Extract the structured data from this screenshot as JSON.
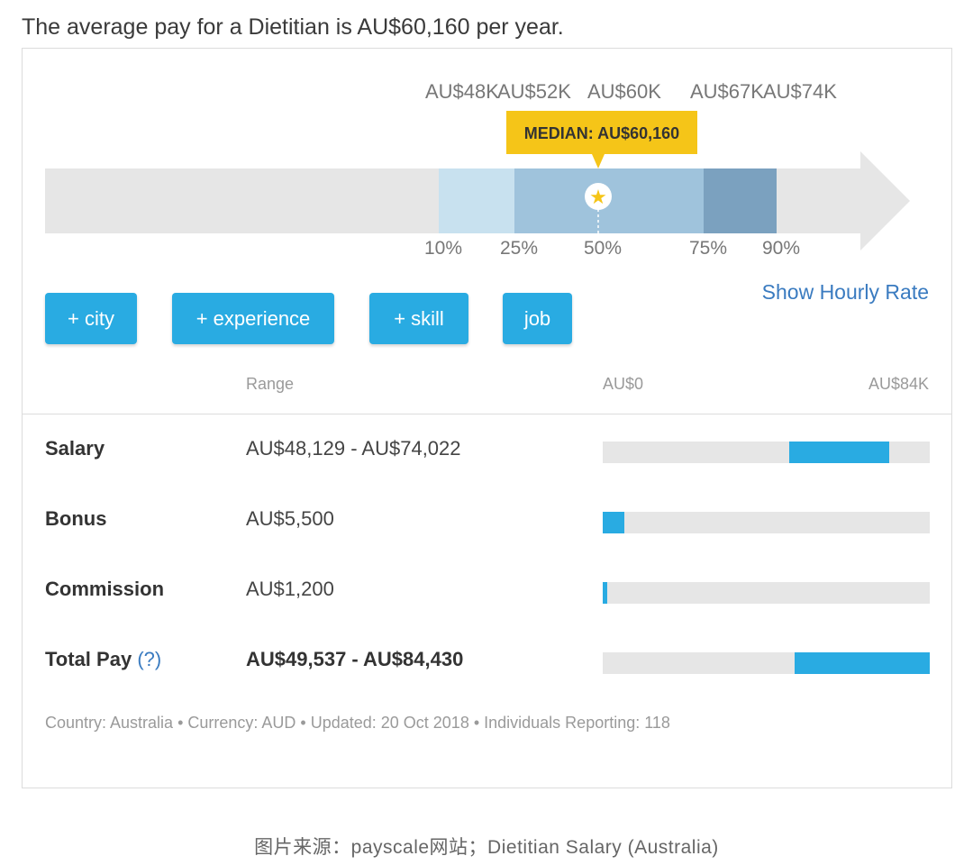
{
  "headline": "The average pay for a Dietitian is AU$60,160 per year.",
  "chart_data": {
    "type": "bar",
    "title": "",
    "percentile_labels": [
      "10%",
      "25%",
      "50%",
      "75%",
      "90%"
    ],
    "percentile_values": [
      "AU$48K",
      "AU$52K",
      "AU$60K",
      "AU$67K",
      "AU$74K"
    ],
    "values": [
      48129,
      52000,
      60160,
      67000,
      74022
    ],
    "median_label": "MEDIAN: AU$60,160",
    "median_value": 60160,
    "colors": {
      "band_outer": "#c8e1ef",
      "band_inner": "#9fc3dc",
      "band_upper": "#7ba1bf",
      "arrow": "#e6e6e6",
      "median_badge": "#f5c518"
    }
  },
  "filters": {
    "city": "+ city",
    "experience": "+ experience",
    "skill": "+ skill",
    "job": "job"
  },
  "show_hourly": "Show Hourly Rate",
  "table": {
    "range_header": "Range",
    "scale_min": "AU$0",
    "scale_max": "AU$84K",
    "scale_max_value": 84430,
    "rows": [
      {
        "label": "Salary",
        "range": "AU$48,129 - AU$74,022",
        "low": 48129,
        "high": 74022
      },
      {
        "label": "Bonus",
        "range": "AU$5,500",
        "low": 0,
        "high": 5500
      },
      {
        "label": "Commission",
        "range": "AU$1,200",
        "low": 0,
        "high": 1200
      },
      {
        "label": "Total Pay",
        "help": "(?)",
        "range": "AU$49,537 - AU$84,430",
        "low": 49537,
        "high": 84430
      }
    ]
  },
  "meta": "Country: Australia • Currency: AUD • Updated: 20 Oct 2018 • Individuals Reporting: 118",
  "caption": "图片来源：payscale网站；Dietitian Salary (Australia)",
  "accent": "#29abe2",
  "link_color": "#3a7bc0"
}
